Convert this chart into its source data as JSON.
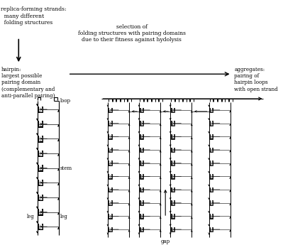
{
  "bg_color": "#ffffff",
  "text_color": "#000000",
  "fig_width": 3.99,
  "fig_height": 3.52,
  "top_left_text": "replica-forming strands:\n  many different\n  folding structures",
  "center_top_text": "selection of\nfolding structures with pairing domains\ndue to their fitness against hydolysis",
  "hairpin_label": "hairpin:\nlargest possible\npairing domain\n(complementary and\nanti-parallel pairing)",
  "aggregates_label": "aggregates:\npairing of\nhairpin loops\nwith open strand",
  "loop_label": "loop",
  "stem_label": "stem",
  "leg_left_label": "leg",
  "leg_right_label": "leg",
  "gap_label": "gap"
}
